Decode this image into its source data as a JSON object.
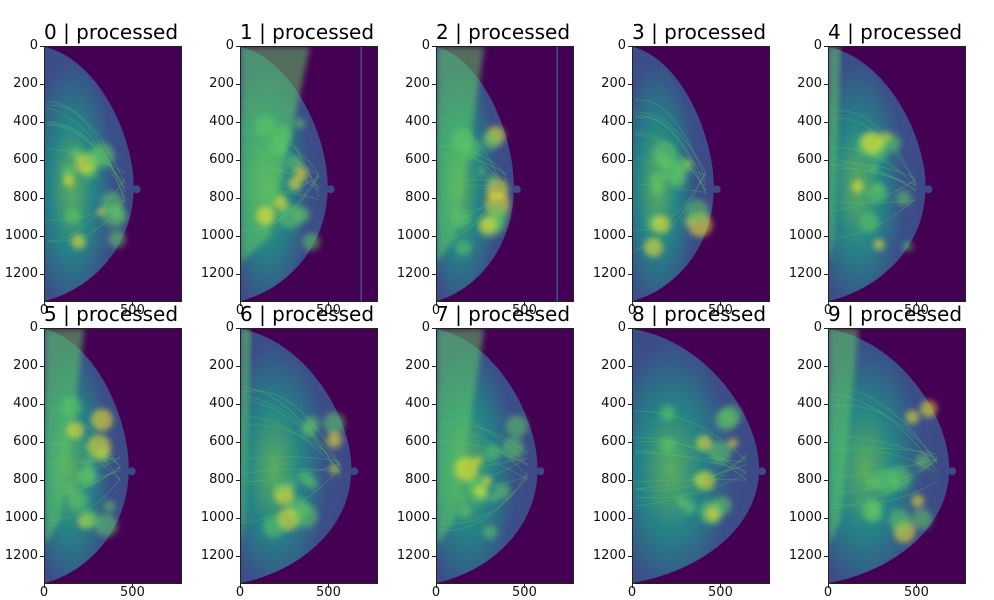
{
  "figure": {
    "panels": [
      {
        "label": "0 | processed",
        "variant": 0
      },
      {
        "label": "1 | processed",
        "variant": 1
      },
      {
        "label": "2 | processed",
        "variant": 2
      },
      {
        "label": "3 | processed",
        "variant": 3
      },
      {
        "label": "4 | processed",
        "variant": 4
      },
      {
        "label": "5 | processed",
        "variant": 5
      },
      {
        "label": "6 | processed",
        "variant": 6
      },
      {
        "label": "7 | processed",
        "variant": 7
      },
      {
        "label": "8 | processed",
        "variant": 8
      },
      {
        "label": "9 | processed",
        "variant": 9
      }
    ],
    "y_ticks": [
      "0",
      "200",
      "400",
      "600",
      "800",
      "1000",
      "1200"
    ],
    "x_ticks": [
      "0",
      "500"
    ],
    "colors": {
      "background": "#440154",
      "mid": "#3b528b",
      "tissue": "#21918c",
      "bright": "#5ec962",
      "peak": "#fde725"
    }
  }
}
